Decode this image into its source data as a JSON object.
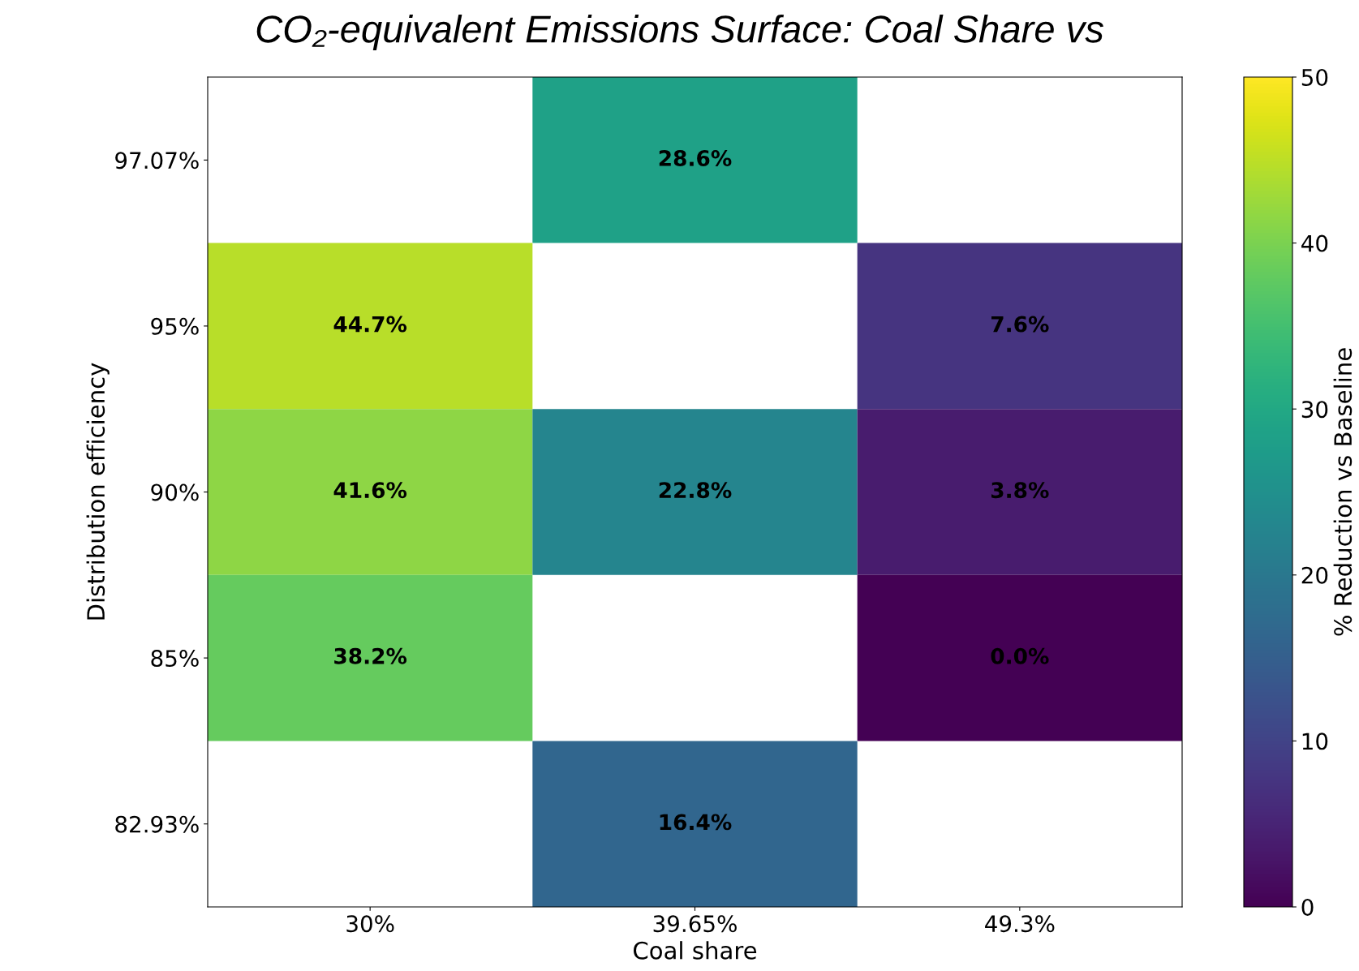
{
  "chart_data": {
    "type": "heatmap",
    "title": "CO₂-equivalent Emissions Surface: Coal Share vs",
    "xlabel": "Coal share",
    "ylabel": "Distribution efficiency",
    "clabel": "% Reduction vs Baseline",
    "categories": [
      "30%",
      "39.65%",
      "49.3%"
    ],
    "y_categories": [
      "97.07%",
      "95%",
      "90%",
      "85%",
      "82.93%"
    ],
    "cells": [
      [
        null,
        28.6,
        null
      ],
      [
        44.7,
        null,
        7.6
      ],
      [
        41.6,
        22.8,
        3.8
      ],
      [
        38.2,
        null,
        0.0
      ],
      [
        null,
        16.4,
        null
      ]
    ],
    "cell_labels": [
      [
        null,
        "28.6%",
        null
      ],
      [
        "44.7%",
        null,
        "7.6%"
      ],
      [
        "41.6%",
        "22.8%",
        "3.8%"
      ],
      [
        "38.2%",
        null,
        "0.0%"
      ],
      [
        null,
        "16.4%",
        null
      ]
    ],
    "clim": [
      0,
      50
    ],
    "cticks": [
      0,
      10,
      20,
      30,
      40,
      50
    ]
  }
}
